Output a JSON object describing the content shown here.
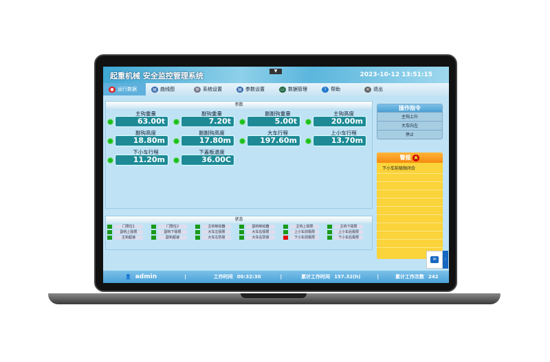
{
  "header": {
    "title": "起重机械 安全监控管理系统",
    "datetime": "2023-10-12 13:51:15"
  },
  "menu": [
    {
      "label": "运行数据",
      "icon": "record-icon",
      "active": true
    },
    {
      "label": "曲线图",
      "icon": "chart-icon"
    },
    {
      "label": "系统设置",
      "icon": "gear-icon"
    },
    {
      "label": "参数设置",
      "icon": "settings-icon"
    },
    {
      "label": "数据管理",
      "icon": "monitor-icon"
    },
    {
      "label": "帮助",
      "icon": "help-icon"
    },
    {
      "label": "退出",
      "icon": "exit-icon"
    }
  ],
  "params": {
    "title": "参数",
    "items": [
      {
        "label": "主钩重量",
        "value": "63.00t"
      },
      {
        "label": "副钩重量",
        "value": "7.20t"
      },
      {
        "label": "副副钩重量",
        "value": "5.00t"
      },
      {
        "label": "主钩高度",
        "value": "20.00m"
      },
      {
        "label": "副钩高度",
        "value": "18.80m"
      },
      {
        "label": "副副钩高度",
        "value": "17.80m"
      },
      {
        "label": "大车行程",
        "value": "197.60m"
      },
      {
        "label": "上小车行程",
        "value": "13.70m"
      },
      {
        "label": "下小车行程",
        "value": "11.20m"
      },
      {
        "label": "下盖板温度",
        "value": "36.00C"
      }
    ]
  },
  "status": {
    "title": "状态",
    "items": [
      {
        "label": "门限位1",
        "state": "ok"
      },
      {
        "label": "门限位2",
        "state": "ok"
      },
      {
        "label": "主钩制动器",
        "state": "ok"
      },
      {
        "label": "副钩制动器",
        "state": "ok"
      },
      {
        "label": "主钩上极限",
        "state": "ok"
      },
      {
        "label": "主钩下极限",
        "state": "ok"
      },
      {
        "label": "副钩上极限",
        "state": "ok"
      },
      {
        "label": "副钩下极限",
        "state": "ok"
      },
      {
        "label": "大车左极限",
        "state": "ok"
      },
      {
        "label": "大车右极限",
        "state": "ok"
      },
      {
        "label": "上小车前极限",
        "state": "ok"
      },
      {
        "label": "上小车后极限",
        "state": "ok"
      },
      {
        "label": "主钩超速",
        "state": "ok"
      },
      {
        "label": "副钩超速",
        "state": "ok"
      },
      {
        "label": "大车左防撞",
        "state": "ok"
      },
      {
        "label": "大车右防撞",
        "state": "ok"
      },
      {
        "label": "下小车前极限",
        "state": "alarm"
      },
      {
        "label": "下小车后极限",
        "state": "ok"
      }
    ]
  },
  "commands": {
    "title": "操作指令",
    "items": [
      "主钩上升",
      "大车向左",
      "停止"
    ]
  },
  "alarm": {
    "title": "警报",
    "messages": [
      "下小车前极限闭合"
    ]
  },
  "footer": {
    "user": "admin",
    "work_time_label": "工作时间",
    "work_time": "00:32:30",
    "total_time_label": "累计工作时间",
    "total_time": "157.32(h)",
    "count_label": "累计工作次数",
    "count": "242"
  },
  "colors": {
    "ok": "#1a9a1a",
    "alarm": "#e01010",
    "value_bg": "#1e8a96"
  }
}
